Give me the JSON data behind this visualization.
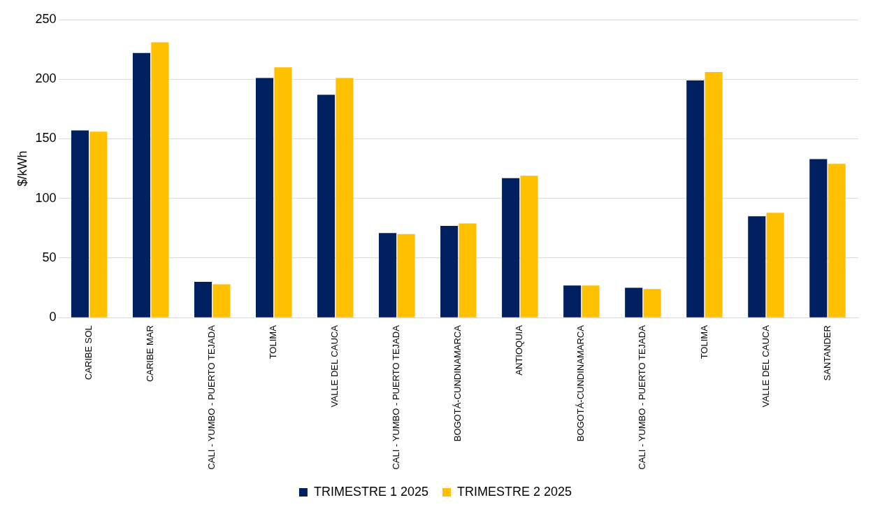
{
  "chart_data": {
    "type": "bar",
    "ylabel": "$/kWh",
    "categories": [
      "CARIBE SOL",
      "CARIBE MAR",
      "CALI - YUMBO - PUERTO TEJADA",
      "TOLIMA",
      "VALLE DEL CAUCA",
      "CALI - YUMBO - PUERTO TEJADA",
      "BOGOTÁ-CUNDINAMARCA",
      "ANTIOQUIA",
      "BOGOTÁ-CUNDINAMARCA",
      "CALI - YUMBO - PUERTO TEJADA",
      "TOLIMA",
      "VALLE DEL CAUCA",
      "SANTANDER"
    ],
    "series": [
      {
        "name": "TRIMESTRE 1 2025",
        "color": "#002060",
        "values": [
          157,
          222,
          30,
          201,
          187,
          71,
          77,
          117,
          27,
          25,
          199,
          85,
          133
        ]
      },
      {
        "name": "TRIMESTRE 2 2025",
        "color": "#ffc000",
        "values": [
          156,
          231,
          28,
          210,
          201,
          70,
          79,
          119,
          27,
          24,
          206,
          88,
          129
        ]
      }
    ],
    "ylim": [
      0,
      250
    ],
    "yticks": [
      0,
      50,
      100,
      150,
      200,
      250
    ],
    "grid": "y",
    "legend": "bottom"
  }
}
